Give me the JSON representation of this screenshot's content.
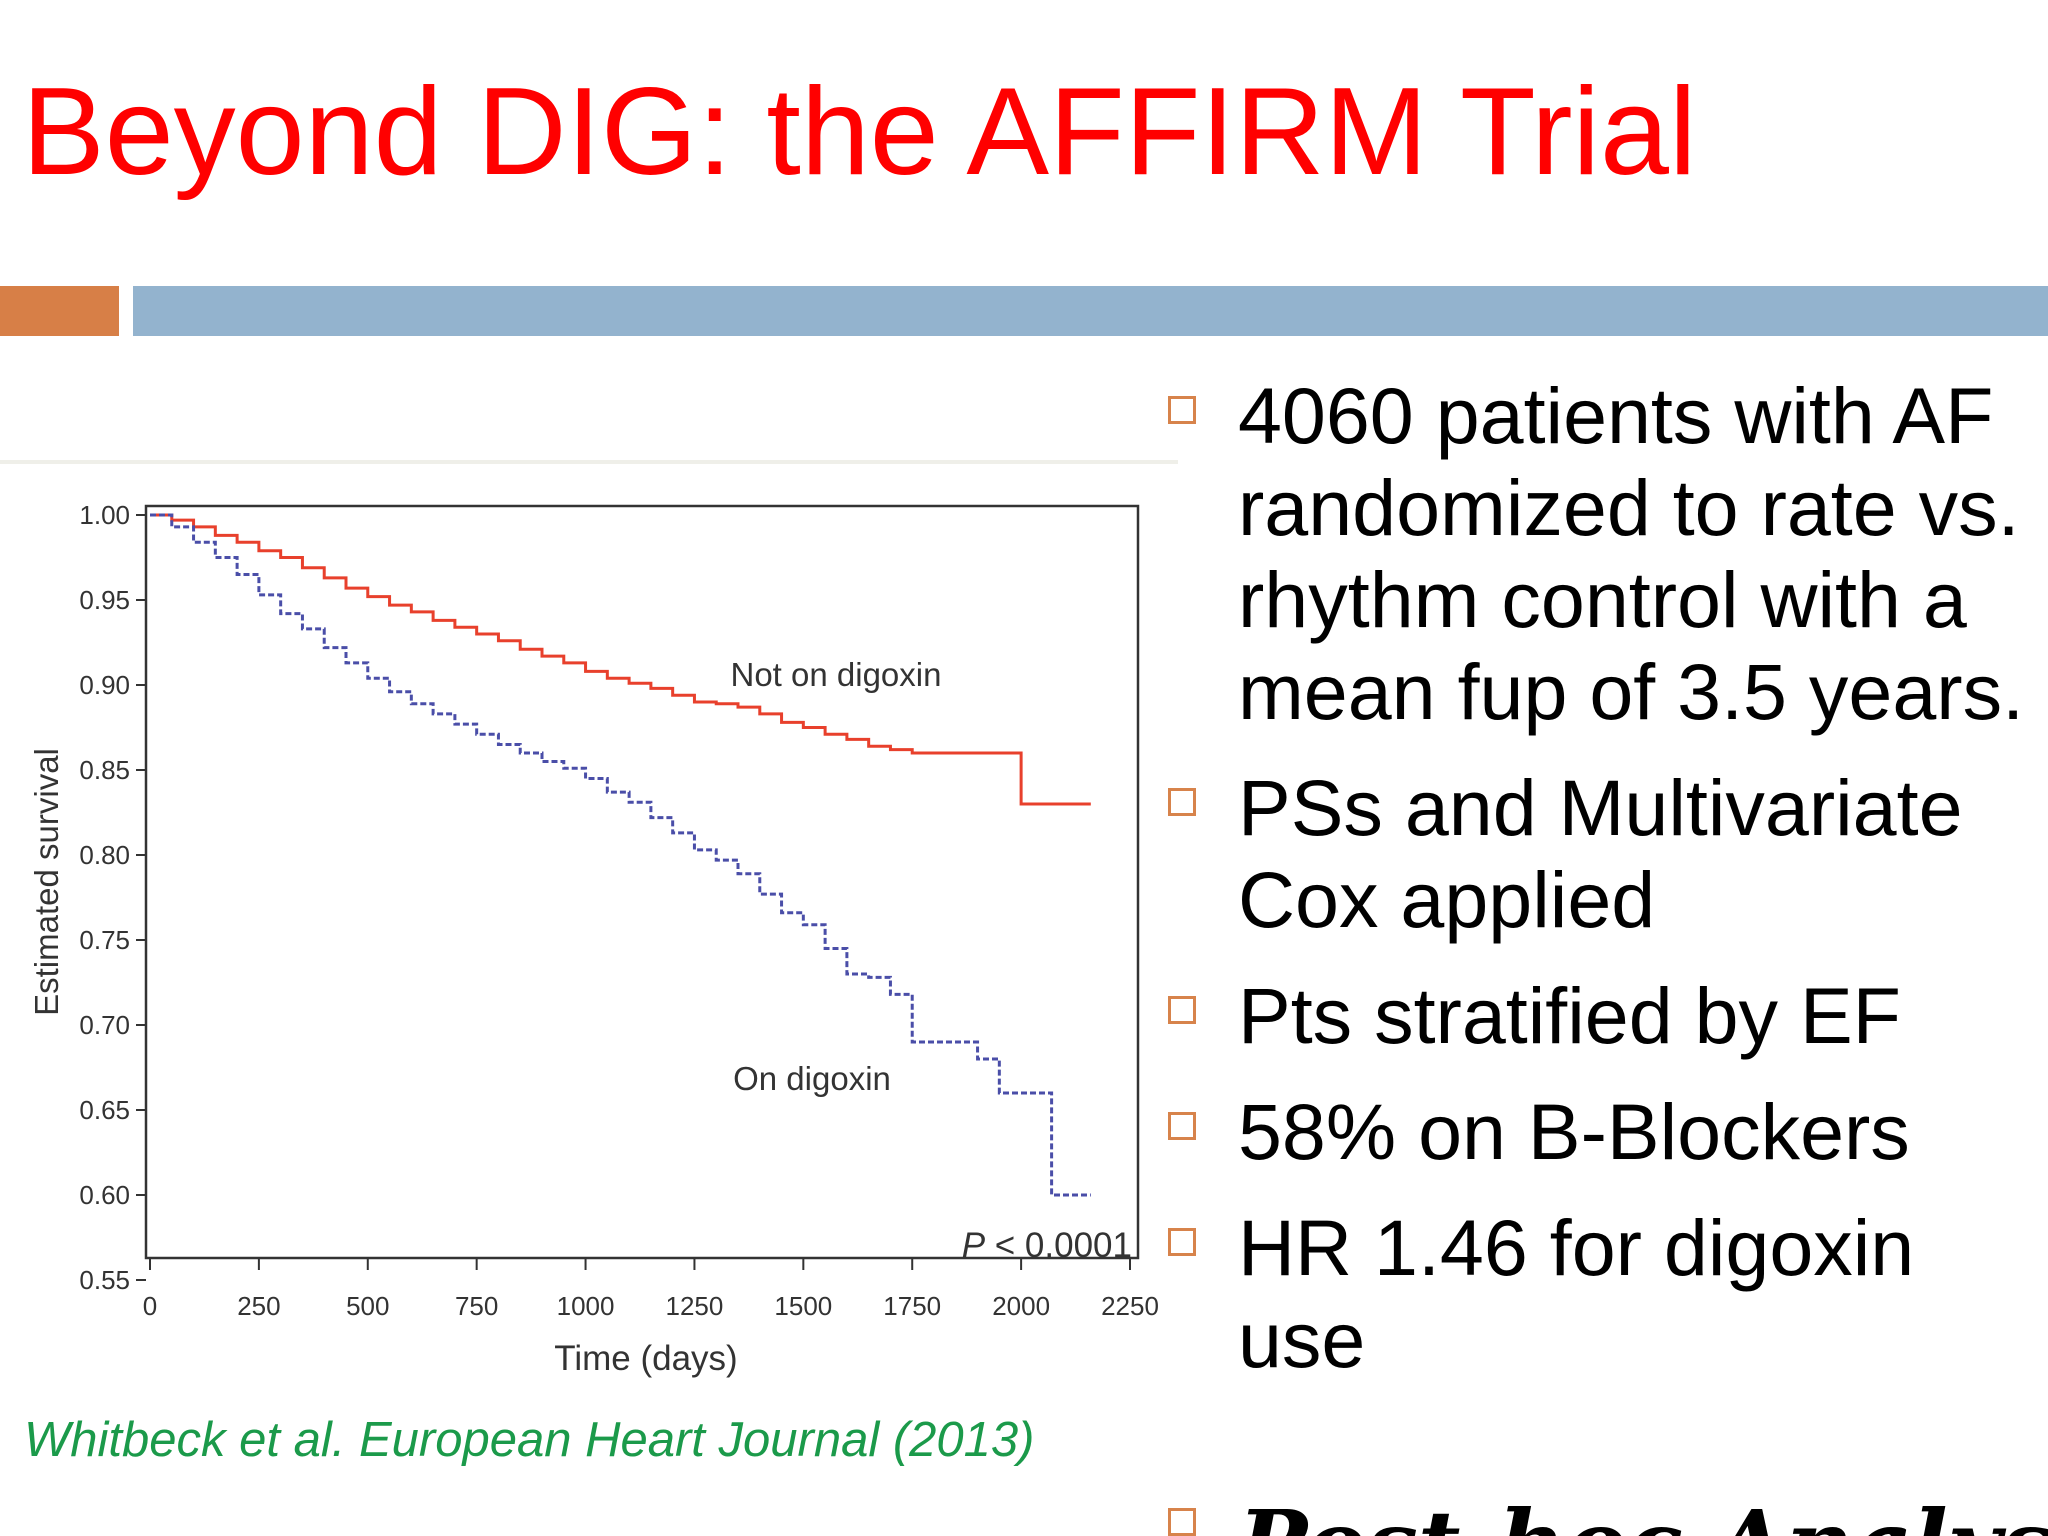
{
  "slide": {
    "title": "Beyond DIG: the AFFIRM Trial",
    "citation": "Whitbeck et al. European Heart Journal (2013)",
    "bullets": [
      "4060 patients with AF randomized to rate vs. rhythm control with a mean fup of 3.5 years.",
      "PSs and Multivariate Cox applied",
      "Pts stratified by EF",
      "58% on B-Blockers",
      "HR 1.46 for digoxin use"
    ],
    "cut_bullet": "Post-hoc Analysis",
    "colors": {
      "title": "#ff0000",
      "accent_orange": "#d77f47",
      "accent_blue": "#93b3ce",
      "citation": "#1b9a4a"
    }
  },
  "chart_data": {
    "type": "line",
    "xlabel": "Time (days)",
    "ylabel": "Estimated survival",
    "xlim": [
      0,
      2250
    ],
    "ylim": [
      0.55,
      1.0
    ],
    "xticks": [
      "0",
      "250",
      "500",
      "750",
      "1000",
      "1250",
      "1500",
      "1750",
      "2000",
      "2250"
    ],
    "yticks": [
      "1.00",
      "0.95",
      "0.90",
      "0.85",
      "0.80",
      "0.75",
      "0.70",
      "0.65",
      "0.60",
      "0.55"
    ],
    "annotation": "P < 0.0001",
    "grid": false,
    "series": [
      {
        "name": "Not on digoxin",
        "color": "#e8402c",
        "style": "solid",
        "step": true,
        "x": [
          0,
          50,
          100,
          150,
          200,
          250,
          300,
          350,
          400,
          450,
          500,
          550,
          600,
          650,
          700,
          750,
          800,
          850,
          900,
          950,
          1000,
          1050,
          1100,
          1150,
          1200,
          1250,
          1300,
          1350,
          1400,
          1450,
          1500,
          1550,
          1600,
          1650,
          1700,
          1750,
          1800,
          1850,
          1900,
          1950,
          2000,
          2100,
          2160
        ],
        "y": [
          1.0,
          0.997,
          0.993,
          0.988,
          0.984,
          0.979,
          0.975,
          0.969,
          0.963,
          0.957,
          0.952,
          0.947,
          0.943,
          0.938,
          0.934,
          0.93,
          0.926,
          0.921,
          0.917,
          0.913,
          0.908,
          0.904,
          0.901,
          0.898,
          0.894,
          0.89,
          0.889,
          0.887,
          0.883,
          0.878,
          0.875,
          0.871,
          0.868,
          0.864,
          0.862,
          0.86,
          0.86,
          0.86,
          0.86,
          0.86,
          0.83,
          0.83,
          0.83
        ]
      },
      {
        "name": "On digoxin",
        "color": "#4a4ea8",
        "style": "dashed",
        "step": true,
        "x": [
          0,
          50,
          100,
          150,
          200,
          250,
          300,
          350,
          400,
          450,
          500,
          550,
          600,
          650,
          700,
          750,
          800,
          850,
          900,
          950,
          1000,
          1050,
          1100,
          1150,
          1200,
          1250,
          1300,
          1350,
          1400,
          1450,
          1500,
          1550,
          1600,
          1650,
          1700,
          1750,
          1800,
          1850,
          1900,
          1950,
          2000,
          2050,
          2070,
          2100,
          2160
        ],
        "y": [
          1.0,
          0.993,
          0.984,
          0.975,
          0.965,
          0.953,
          0.942,
          0.933,
          0.922,
          0.913,
          0.904,
          0.896,
          0.889,
          0.883,
          0.877,
          0.871,
          0.865,
          0.86,
          0.855,
          0.851,
          0.845,
          0.837,
          0.831,
          0.822,
          0.813,
          0.803,
          0.797,
          0.789,
          0.777,
          0.766,
          0.759,
          0.745,
          0.73,
          0.728,
          0.718,
          0.69,
          0.69,
          0.69,
          0.68,
          0.66,
          0.66,
          0.66,
          0.6,
          0.6,
          0.6
        ]
      }
    ]
  }
}
